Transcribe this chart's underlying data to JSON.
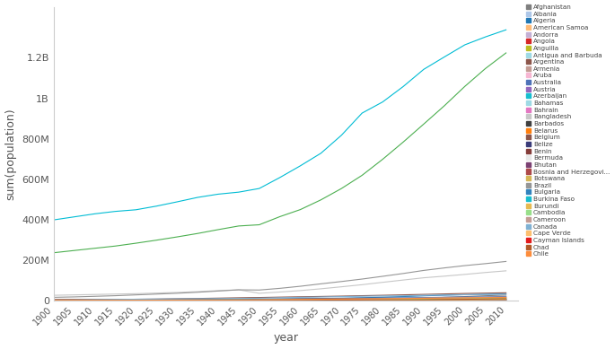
{
  "xlabel": "year",
  "ylabel": "sum(population)",
  "years": [
    1900,
    1905,
    1910,
    1915,
    1920,
    1925,
    1930,
    1935,
    1940,
    1945,
    1950,
    1955,
    1960,
    1965,
    1970,
    1975,
    1980,
    1985,
    1990,
    1995,
    2000,
    2005,
    2010
  ],
  "countries": {
    "Afghanistan": {
      "color": "#7f7f7f",
      "data": [
        5000000,
        5200000,
        5500000,
        5700000,
        5900000,
        6200000,
        6500000,
        6900000,
        7200000,
        7700000,
        8150000,
        8890000,
        9830000,
        10780000,
        11990000,
        13410000,
        14450000,
        13290000,
        11731000,
        18027000,
        21765000,
        25631000,
        29117000
      ]
    },
    "Albania": {
      "color": "#aec7e8",
      "data": [
        832000,
        870000,
        910000,
        950000,
        990000,
        1040000,
        1100000,
        1150000,
        1200000,
        1120000,
        1215000,
        1390000,
        1620000,
        1860000,
        2134000,
        2400000,
        2671000,
        2958000,
        3250000,
        3121000,
        3069000,
        3010000,
        2901000
      ]
    },
    "Algeria": {
      "color": "#1f77b4",
      "data": [
        4700000,
        5000000,
        5400000,
        5700000,
        5900000,
        6300000,
        6600000,
        7000000,
        7400000,
        7600000,
        8872000,
        9857000,
        10800000,
        11922000,
        13746000,
        16018000,
        18739000,
        21875000,
        25299000,
        28556000,
        31183000,
        33003000,
        35468000
      ]
    },
    "American Samoa": {
      "color": "#ffbb78",
      "data": [
        5000,
        6000,
        7000,
        8000,
        9000,
        10000,
        12000,
        13000,
        14000,
        15000,
        18000,
        20000,
        22000,
        26000,
        30000,
        34000,
        38000,
        43000,
        47000,
        52000,
        56000,
        58000,
        56000
      ]
    },
    "Andorra": {
      "color": "#c5b0d5",
      "data": [
        6000,
        7000,
        8000,
        9000,
        10000,
        11000,
        12000,
        13000,
        14000,
        6000,
        6000,
        7000,
        9000,
        13000,
        20000,
        29000,
        36000,
        44000,
        54000,
        64000,
        66000,
        76000,
        84000
      ]
    },
    "Angola": {
      "color": "#d62728",
      "data": [
        3500000,
        3700000,
        3900000,
        4100000,
        4300000,
        4500000,
        4800000,
        5100000,
        5400000,
        5600000,
        4131000,
        4561000,
        4965000,
        5480000,
        5926000,
        6632000,
        7637000,
        8842000,
        10335000,
        11744000,
        13131000,
        16095000,
        19082000
      ]
    },
    "Anguilla": {
      "color": "#bcbd22",
      "data": [
        4000,
        4500,
        5000,
        5000,
        5000,
        4800,
        4600,
        4500,
        4400,
        4300,
        4200,
        4600,
        5100,
        5600,
        6400,
        6600,
        6900,
        7500,
        8600,
        10400,
        11700,
        13300,
        15000
      ]
    },
    "Antigua and Barbuda": {
      "color": "#9edae5",
      "data": [
        30000,
        32000,
        33000,
        34000,
        35000,
        36000,
        37000,
        38000,
        40000,
        42000,
        45000,
        49000,
        54000,
        60000,
        65000,
        68000,
        72000,
        78000,
        63000,
        68000,
        77000,
        83000,
        87000
      ]
    },
    "Argentina": {
      "color": "#8c564b",
      "data": [
        4700000,
        5400000,
        6500000,
        7600000,
        8500000,
        9600000,
        11100000,
        12400000,
        14000000,
        15800000,
        17150000,
        18938000,
        20617000,
        22288000,
        23962000,
        26049000,
        28093000,
        30331000,
        32527000,
        34768000,
        37032000,
        38747000,
        40412000
      ]
    },
    "Armenia": {
      "color": "#c49c94",
      "data": [
        1000000,
        1050000,
        1100000,
        1150000,
        900000,
        950000,
        1000000,
        1070000,
        1140000,
        1200000,
        1354000,
        1604000,
        1867000,
        2195000,
        2534000,
        2804000,
        3096000,
        3317000,
        3545000,
        3213000,
        3076000,
        3016000,
        2877000
      ]
    },
    "Aruba": {
      "color": "#f7b6d2",
      "data": [
        9000,
        9500,
        10000,
        10500,
        11000,
        12000,
        13000,
        16000,
        26000,
        50000,
        52000,
        55000,
        58000,
        58000,
        59000,
        60000,
        62000,
        69000,
        75000,
        85000,
        94000,
        99000,
        102000
      ]
    },
    "Australia": {
      "color": "#4e72b8",
      "data": [
        3773000,
        4060000,
        4425000,
        4867000,
        5410000,
        5960000,
        6500000,
        6900000,
        7200000,
        7430000,
        8267000,
        9281000,
        10392000,
        11340000,
        12552000,
        13893000,
        14726000,
        15788000,
        17107000,
        18532000,
        19153000,
        20090000,
        22269000
      ]
    },
    "Austria": {
      "color": "#9467bd",
      "data": [
        6650000,
        6750000,
        6900000,
        7000000,
        6480000,
        6600000,
        6750000,
        6800000,
        7000000,
        7000000,
        6935000,
        6938000,
        7048000,
        7255000,
        7467000,
        7579000,
        7549000,
        7574000,
        7718000,
        7959000,
        8011000,
        8227000,
        8391000
      ]
    },
    "Azerbaijan": {
      "color": "#17becf",
      "data": [
        1500000,
        1600000,
        1700000,
        1800000,
        1900000,
        2000000,
        2100000,
        2300000,
        2600000,
        2700000,
        2896000,
        3390000,
        3900000,
        4555000,
        5183000,
        5820000,
        6508000,
        7020000,
        7170000,
        7683000,
        8048000,
        8388000,
        9054000
      ]
    },
    "Bahamas": {
      "color": "#9edae5",
      "data": [
        50000,
        55000,
        60000,
        65000,
        70000,
        76000,
        82000,
        90000,
        100000,
        107000,
        116000,
        138000,
        164000,
        196000,
        220000,
        233000,
        253000,
        271000,
        255000,
        281000,
        297000,
        325000,
        343000
      ]
    },
    "Bahrain": {
      "color": "#e377c2",
      "data": [
        100000,
        110000,
        120000,
        130000,
        140000,
        150000,
        160000,
        170000,
        190000,
        200000,
        116000,
        143000,
        162000,
        200000,
        228000,
        296000,
        359000,
        441000,
        521000,
        623000,
        712000,
        877000,
        1213000
      ]
    },
    "Bangladesh": {
      "color": "#c7c7c7",
      "data": [
        28000000,
        30000000,
        32000000,
        34000000,
        36000000,
        39000000,
        42000000,
        46000000,
        51000000,
        55000000,
        37895000,
        44050000,
        51297000,
        60110000,
        69954000,
        80280000,
        91963000,
        103340000,
        114438000,
        122438000,
        131050000,
        140507000,
        148692000
      ]
    },
    "Barbados": {
      "color": "#404040",
      "data": [
        170000,
        176000,
        183000,
        190000,
        197000,
        204000,
        197000,
        200000,
        210000,
        212000,
        210000,
        228000,
        232000,
        243000,
        239000,
        245000,
        250000,
        257000,
        259000,
        265000,
        268000,
        270000,
        274000
      ]
    },
    "Belarus": {
      "color": "#ff7f0e",
      "data": [
        6500000,
        6700000,
        6900000,
        7100000,
        6700000,
        5000000,
        5500000,
        6000000,
        7000000,
        8000000,
        8048000,
        8286000,
        8865000,
        9101000,
        9338000,
        9478000,
        9926000,
        10076000,
        10273000,
        10177000,
        9988000,
        9700000,
        9480000
      ]
    },
    "Belgium": {
      "color": "#8c564b",
      "data": [
        6700000,
        7000000,
        7400000,
        7700000,
        7400000,
        7900000,
        8100000,
        8300000,
        8400000,
        8300000,
        8640000,
        8869000,
        9153000,
        9464000,
        9638000,
        9801000,
        9859000,
        9858000,
        9967000,
        10137000,
        10251000,
        10479000,
        10839000
      ]
    },
    "Belize": {
      "color": "#393b79",
      "data": [
        36000,
        38000,
        41000,
        44000,
        48000,
        52000,
        57000,
        63000,
        70000,
        75000,
        81000,
        93000,
        90000,
        105000,
        130000,
        145000,
        160000,
        176000,
        189000,
        212000,
        241000,
        270000,
        312000
      ]
    },
    "Benin": {
      "color": "#843c39",
      "data": [
        1000000,
        1050000,
        1100000,
        1150000,
        1200000,
        1260000,
        1340000,
        1430000,
        1530000,
        1640000,
        1754000,
        1972000,
        2224000,
        2506000,
        2836000,
        3213000,
        3657000,
        4204000,
        4891000,
        5761000,
        6722000,
        7915000,
        9100000
      ]
    },
    "Bermuda": {
      "color": "#e8e8e8",
      "data": [
        18000,
        19000,
        20000,
        21000,
        22000,
        23000,
        25000,
        27000,
        28000,
        30000,
        37000,
        42000,
        46000,
        50000,
        52000,
        56000,
        57000,
        58000,
        59000,
        61000,
        63000,
        64000,
        65000
      ]
    },
    "Bhutan": {
      "color": "#7b4173",
      "data": [
        250000,
        260000,
        280000,
        300000,
        320000,
        340000,
        370000,
        390000,
        410000,
        430000,
        734000,
        794000,
        852000,
        917000,
        1005000,
        1143000,
        1238000,
        1350000,
        1540000,
        1802000,
        2067000,
        2233000,
        726000
      ]
    },
    "Bosnia and Herzegovi...": {
      "color": "#ad494a",
      "data": [
        1500000,
        1600000,
        1700000,
        1750000,
        1800000,
        1900000,
        2000000,
        2100000,
        2200000,
        2200000,
        2661000,
        2892000,
        3223000,
        3520000,
        3789000,
        3989000,
        4124000,
        4308000,
        4308000,
        3551000,
        3757000,
        3889000,
        3760000
      ]
    },
    "Botswana": {
      "color": "#d6b656",
      "data": [
        130000,
        145000,
        160000,
        175000,
        195000,
        215000,
        240000,
        265000,
        295000,
        330000,
        413000,
        491000,
        574000,
        666000,
        760000,
        836000,
        910000,
        1105000,
        1350000,
        1619000,
        1725000,
        1906000,
        2007000
      ]
    },
    "Brazil": {
      "color": "#969696",
      "data": [
        18000000,
        20000000,
        23000000,
        26000000,
        30000000,
        34000000,
        38000000,
        43000000,
        49000000,
        55000000,
        53975000,
        62273000,
        72594000,
        84600000,
        96020000,
        108170000,
        121672000,
        135564000,
        150706000,
        163046000,
        174504000,
        184184000,
        194946000
      ]
    },
    "Bulgaria": {
      "color": "#3182bd",
      "data": [
        3744000,
        4038000,
        4337000,
        4600000,
        4800000,
        5000000,
        5200000,
        5500000,
        6500000,
        6800000,
        7251000,
        7614000,
        7867000,
        8201000,
        8490000,
        8721000,
        8862000,
        8948000,
        8718000,
        8384000,
        8099000,
        7740000,
        7497000
      ]
    },
    "Burkina Faso": {
      "color": "#17becf",
      "data": [
        3500000,
        3700000,
        3900000,
        4100000,
        4300000,
        4600000,
        4900000,
        5200000,
        5500000,
        5800000,
        4284000,
        5026000,
        5090000,
        5726000,
        6547000,
        7511000,
        8832000,
        10285000,
        9684000,
        11672000,
        12272000,
        13228000,
        16241000
      ]
    },
    "Burundi": {
      "color": "#e7ba52",
      "data": [
        1500000,
        1600000,
        1700000,
        1800000,
        1900000,
        2000000,
        2100000,
        2200000,
        2400000,
        2500000,
        2455000,
        2729000,
        3024000,
        3358000,
        3757000,
        4234000,
        4617000,
        5133000,
        5634000,
        6229000,
        6460000,
        7548000,
        9232000
      ]
    },
    "Cambodia": {
      "color": "#98df8a",
      "data": [
        1500000,
        1600000,
        1700000,
        1800000,
        1900000,
        2000000,
        2100000,
        2300000,
        2600000,
        3000000,
        4346000,
        5020000,
        5681000,
        6395000,
        7128000,
        7009000,
        6708000,
        7897000,
        9358000,
        11095000,
        12352000,
        13413000,
        14139000
      ]
    },
    "Cameroon": {
      "color": "#c49c94",
      "data": [
        2500000,
        2700000,
        2900000,
        3100000,
        3300000,
        3500000,
        3700000,
        3900000,
        4200000,
        4500000,
        4881000,
        5540000,
        6297000,
        7145000,
        8133000,
        9273000,
        10739000,
        12578000,
        14744000,
        15543000,
        16184000,
        18253000,
        19406000
      ]
    },
    "Canada": {
      "color": "#80b1d3",
      "data": [
        5300000,
        5700000,
        6900000,
        7700000,
        8600000,
        9300000,
        10300000,
        11000000,
        11600000,
        12100000,
        13737000,
        15698000,
        17909000,
        19677000,
        21324000,
        23143000,
        24516000,
        25309000,
        27691000,
        29302000,
        30689000,
        32245000,
        34017000
      ]
    },
    "Cape Verde": {
      "color": "#fdbf6f",
      "data": [
        148000,
        155000,
        163000,
        167000,
        172000,
        179000,
        186000,
        193000,
        200000,
        196000,
        145000,
        165000,
        194000,
        232000,
        269000,
        302000,
        307000,
        340000,
        365000,
        406000,
        436000,
        470000,
        501000
      ]
    },
    "Cayman Islands": {
      "color": "#e31a1c",
      "data": [
        4000,
        4500,
        5000,
        5500,
        6000,
        6200,
        6500,
        7000,
        7500,
        8000,
        8000,
        9000,
        10000,
        11000,
        11000,
        13000,
        17000,
        22000,
        26000,
        33000,
        40000,
        49000,
        55000
      ]
    },
    "Chad": {
      "color": "#b15928",
      "data": [
        1500000,
        1600000,
        1700000,
        1800000,
        1900000,
        2000000,
        2100000,
        2200000,
        2300000,
        2400000,
        2658000,
        2977000,
        3344000,
        3777000,
        4289000,
        4891000,
        5499000,
        5869000,
        6168000,
        7294000,
        8210000,
        10111000,
        11227000
      ]
    },
    "Chile": {
      "color": "#fd8d3c",
      "data": [
        2900000,
        3100000,
        3400000,
        3500000,
        3700000,
        4000000,
        4400000,
        4800000,
        5100000,
        5500000,
        6082000,
        6900000,
        7600000,
        8630000,
        9590000,
        10490000,
        11174000,
        12123000,
        13179000,
        14394000,
        15224000,
        16295000,
        17114000
      ]
    },
    "China": {
      "color": "#00bcd4",
      "data": [
        400000000,
        415000000,
        430000000,
        442000000,
        450000000,
        468000000,
        489000000,
        511000000,
        527000000,
        537000000,
        555000000,
        609000000,
        667000000,
        729000000,
        818000000,
        927000000,
        982000000,
        1058000000,
        1143000000,
        1204000000,
        1264000000,
        1303000000,
        1338000000
      ]
    },
    "India": {
      "color": "#4caf50",
      "data": [
        238000000,
        249000000,
        260000000,
        271000000,
        285000000,
        300000000,
        316000000,
        333000000,
        352000000,
        370000000,
        376000000,
        416000000,
        451000000,
        499000000,
        555000000,
        620000000,
        699000000,
        784000000,
        873000000,
        963000000,
        1059000000,
        1147000000,
        1224000000
      ]
    }
  },
  "ylim": [
    0,
    1450000000
  ],
  "yticks": [
    0,
    200000000,
    400000000,
    600000000,
    800000000,
    1000000000,
    1200000000
  ],
  "ytick_labels": [
    "0",
    "200M",
    "400M",
    "600M",
    "800M",
    "1B",
    "1.2B"
  ],
  "legend_countries": [
    "Afghanistan",
    "Albania",
    "Algeria",
    "American Samoa",
    "Andorra",
    "Angola",
    "Anguilla",
    "Antigua and Barbuda",
    "Argentina",
    "Armenia",
    "Aruba",
    "Australia",
    "Austria",
    "Azerbaijan",
    "Bahamas",
    "Bahrain",
    "Bangladesh",
    "Barbados",
    "Belarus",
    "Belgium",
    "Belize",
    "Benin",
    "Bermuda",
    "Bhutan",
    "Bosnia and Herzegovi...",
    "Botswana",
    "Brazil",
    "Bulgaria",
    "Burkina Faso",
    "Burundi",
    "Cambodia",
    "Cameroon",
    "Canada",
    "Cape Verde",
    "Cayman Islands",
    "Chad",
    "Chile"
  ],
  "figsize": [
    6.85,
    3.89
  ],
  "dpi": 100
}
